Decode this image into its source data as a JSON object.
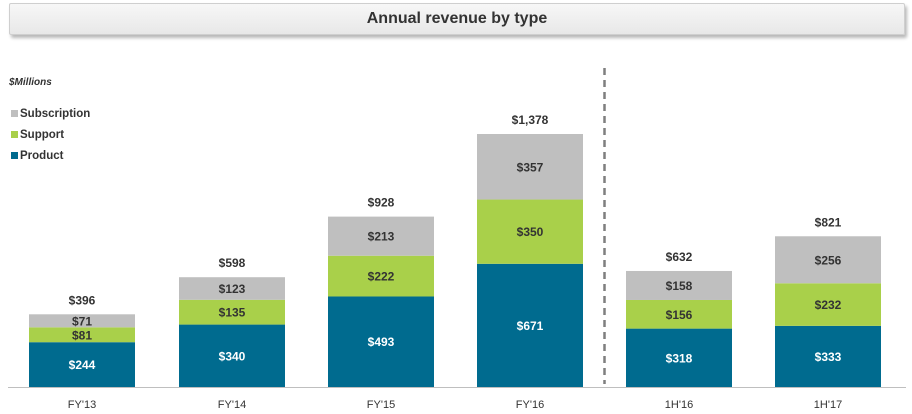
{
  "title": "Annual revenue by type",
  "units_label": "$Millions",
  "colors": {
    "Subscription": "#bfbfbf",
    "Support": "#a9d04a",
    "Product": "#006b8f"
  },
  "chart_data": {
    "type": "bar",
    "stacked": true,
    "title": "Annual revenue by type",
    "ylabel": "$Millions",
    "categories": [
      "FY'13",
      "FY'14",
      "FY'15",
      "FY'16",
      "1H'16",
      "1H'17"
    ],
    "series": [
      {
        "name": "Product",
        "values": [
          244,
          340,
          493,
          671,
          318,
          333
        ],
        "labels": [
          "$244",
          "$340",
          "$493",
          "$671",
          "$318",
          "$333"
        ]
      },
      {
        "name": "Support",
        "values": [
          81,
          135,
          222,
          350,
          156,
          232
        ],
        "labels": [
          "$81",
          "$135",
          "$222",
          "$350",
          "$156",
          "$232"
        ]
      },
      {
        "name": "Subscription",
        "values": [
          71,
          123,
          213,
          357,
          158,
          256
        ],
        "labels": [
          "$71",
          "$123",
          "$213",
          "$357",
          "$158",
          "$256"
        ]
      }
    ],
    "totals": [
      396,
      598,
      928,
      1378,
      632,
      821
    ],
    "total_labels": [
      "$396",
      "$598",
      "$928",
      "$1,378",
      "$632",
      "$821"
    ],
    "legend": [
      "Subscription",
      "Support",
      "Product"
    ],
    "legend_placement": "top-left",
    "separator_after_category": "FY'16",
    "ylim": [
      0,
      1378
    ],
    "grid": false
  }
}
